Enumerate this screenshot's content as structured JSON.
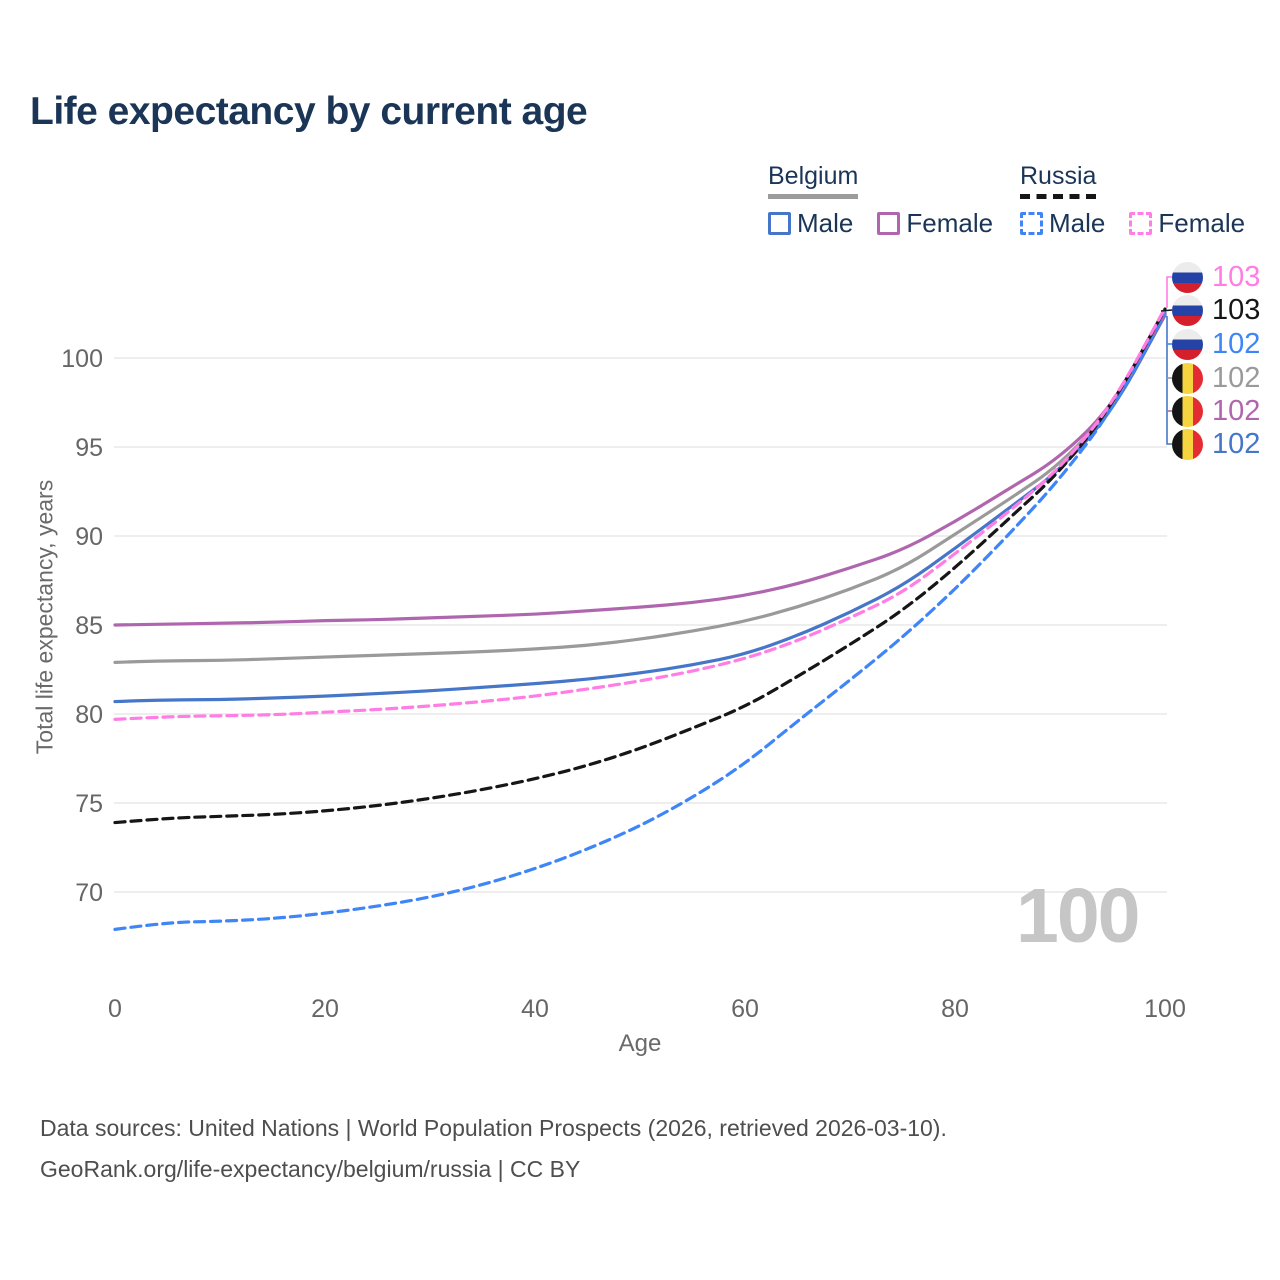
{
  "title": "Life expectancy by current age",
  "watermark": "100",
  "legend": {
    "groups": [
      {
        "label": "Belgium",
        "line_style": "solid",
        "items": [
          {
            "label": "Male",
            "color": "#4576c8"
          },
          {
            "label": "Female",
            "color": "#b066ae"
          }
        ]
      },
      {
        "label": "Russia",
        "line_style": "dashed",
        "items": [
          {
            "label": "Male",
            "color": "#3e86f8"
          },
          {
            "label": "Female",
            "color": "#ff7de4"
          }
        ]
      }
    ]
  },
  "chart_data": {
    "type": "line",
    "title": "Life expectancy by current age",
    "xlabel": "Age",
    "ylabel": "Total life expectancy, years",
    "x_ticks": [
      0,
      20,
      40,
      60,
      80,
      100
    ],
    "y_ticks": [
      70,
      75,
      80,
      85,
      90,
      95,
      100
    ],
    "xlim": [
      0,
      100
    ],
    "ylim": [
      66,
      104
    ],
    "grid": "horizontal-only",
    "legend_position": "top-right",
    "ages": [
      0,
      5,
      10,
      15,
      20,
      25,
      30,
      35,
      40,
      45,
      50,
      55,
      60,
      65,
      70,
      75,
      80,
      85,
      90,
      95,
      100
    ],
    "series": [
      {
        "name": "Russia Female",
        "country": "Russia",
        "sex": "Female",
        "dash": true,
        "color": "#ff7de4",
        "flag": "ru",
        "end_label": "103",
        "values": [
          79.7,
          79.85,
          79.9,
          79.95,
          80.1,
          80.25,
          80.45,
          80.7,
          81.0,
          81.4,
          81.85,
          82.4,
          83.1,
          84.1,
          85.4,
          86.8,
          89.0,
          91.3,
          93.8,
          97.4,
          102.8
        ]
      },
      {
        "name": "Russia Both sexes",
        "country": "Russia",
        "sex": "Both",
        "dash": true,
        "color": "#161616",
        "flag": "ru",
        "end_label": "103",
        "values": [
          73.9,
          74.15,
          74.25,
          74.35,
          74.55,
          74.85,
          75.25,
          75.75,
          76.35,
          77.1,
          78.05,
          79.2,
          80.4,
          82.1,
          83.9,
          85.8,
          88.2,
          90.9,
          93.6,
          97.35,
          102.75
        ]
      },
      {
        "name": "Russia Male",
        "country": "Russia",
        "sex": "Male",
        "dash": true,
        "color": "#3e86f8",
        "flag": "ru",
        "end_label": "102",
        "values": [
          67.9,
          68.3,
          68.35,
          68.5,
          68.8,
          69.2,
          69.7,
          70.4,
          71.3,
          72.4,
          73.7,
          75.3,
          77.2,
          79.6,
          81.9,
          84.3,
          87.0,
          90.0,
          93.2,
          97.1,
          102.55
        ]
      },
      {
        "name": "Belgium Both sexes",
        "country": "Belgium",
        "sex": "Both",
        "dash": false,
        "color": "#9a9a9a",
        "flag": "be",
        "end_label": "102",
        "values": [
          82.9,
          83.0,
          83.0,
          83.1,
          83.2,
          83.3,
          83.4,
          83.5,
          83.65,
          83.85,
          84.2,
          84.65,
          85.2,
          86.0,
          87.0,
          88.2,
          90.1,
          92.0,
          94.0,
          97.2,
          102.5
        ]
      },
      {
        "name": "Belgium Female",
        "country": "Belgium",
        "sex": "Female",
        "dash": false,
        "color": "#b066ae",
        "flag": "be",
        "end_label": "102",
        "values": [
          85.0,
          85.05,
          85.1,
          85.15,
          85.25,
          85.3,
          85.4,
          85.5,
          85.6,
          85.8,
          86.0,
          86.25,
          86.65,
          87.3,
          88.2,
          89.2,
          90.8,
          92.6,
          94.4,
          97.3,
          102.45
        ]
      },
      {
        "name": "Belgium Male",
        "country": "Belgium",
        "sex": "Male",
        "dash": false,
        "color": "#4576c8",
        "flag": "be",
        "end_label": "102",
        "values": [
          80.7,
          80.8,
          80.8,
          80.9,
          81.0,
          81.15,
          81.3,
          81.5,
          81.7,
          81.95,
          82.3,
          82.75,
          83.35,
          84.4,
          85.7,
          87.2,
          89.3,
          91.5,
          93.7,
          97.0,
          102.4
        ]
      }
    ]
  },
  "footer": {
    "line1": "Data sources: United Nations | World Population Prospects (2026, retrieved 2026-03-10).",
    "line2": "GeoRank.org/life-expectancy/belgium/russia | CC BY"
  }
}
